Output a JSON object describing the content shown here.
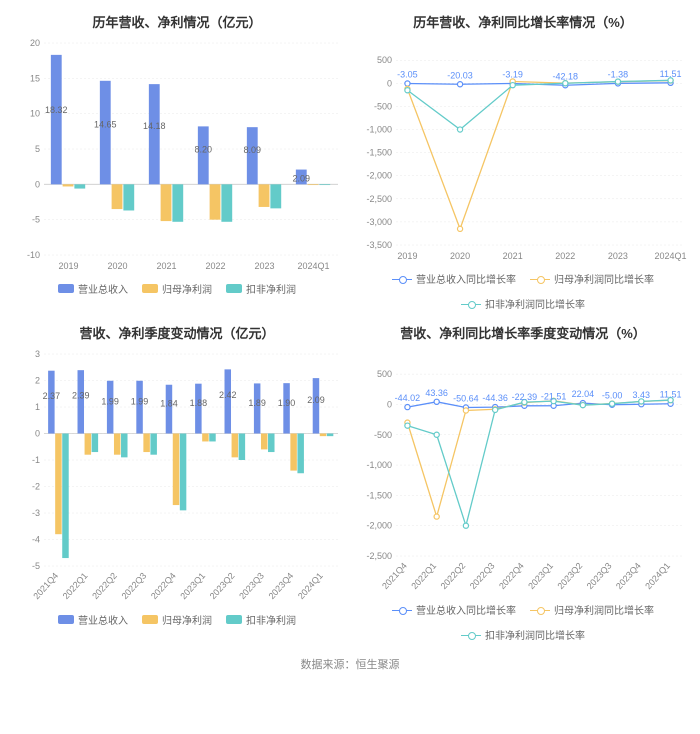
{
  "colors": {
    "bar_revenue": "#6e8fe6",
    "bar_net": "#f5c564",
    "bar_nonrec": "#63cbc9",
    "line_revenue": "#5b8ff9",
    "line_net": "#f5c564",
    "line_nonrec": "#63cbc9",
    "grid": "#e8e8e8",
    "axis": "#888888",
    "title": "#333333",
    "bg": "#ffffff"
  },
  "footer": "数据来源：恒生聚源",
  "panels": {
    "tl": {
      "title": "历年营收、净利情况（亿元）",
      "type": "grouped-bar",
      "categories": [
        "2019",
        "2020",
        "2021",
        "2022",
        "2023",
        "2024Q1"
      ],
      "ylim": [
        -10,
        20
      ],
      "ytick_step": 5,
      "series": [
        {
          "key": "revenue",
          "label": "营业总收入",
          "color": "#6e8fe6",
          "values": [
            18.32,
            14.65,
            14.18,
            8.2,
            8.09,
            2.09
          ]
        },
        {
          "key": "net",
          "label": "归母净利润",
          "color": "#f5c564",
          "values": [
            -0.3,
            -3.5,
            -5.2,
            -5.0,
            -3.2,
            -0.1
          ]
        },
        {
          "key": "nonrec",
          "label": "扣非净利润",
          "color": "#63cbc9",
          "values": [
            -0.6,
            -3.7,
            -5.3,
            -5.3,
            -3.4,
            -0.1
          ]
        }
      ],
      "bar_labels_series": "revenue"
    },
    "tr": {
      "title": "历年营收、净利同比增长率情况（%）",
      "type": "line",
      "categories": [
        "2019",
        "2020",
        "2021",
        "2022",
        "2023",
        "2024Q1"
      ],
      "ylim": [
        -3500,
        700
      ],
      "yticks": [
        -3500,
        -3000,
        -2500,
        -2000,
        -1500,
        -1000,
        -500,
        0,
        500
      ],
      "series": [
        {
          "key": "revenue",
          "label": "营业总收入同比增长率",
          "color": "#5b8ff9",
          "values": [
            -3.05,
            -20.03,
            -3.19,
            -42.18,
            -1.38,
            11.51
          ]
        },
        {
          "key": "net",
          "label": "归母净利润同比增长率",
          "color": "#f5c564",
          "values": [
            -120,
            -3150,
            40,
            5,
            36,
            60
          ]
        },
        {
          "key": "nonrec",
          "label": "扣非净利润同比增长率",
          "color": "#63cbc9",
          "values": [
            -150,
            -1000,
            -40,
            2,
            38,
            65
          ]
        }
      ],
      "point_labels_series": "revenue"
    },
    "bl": {
      "title": "营收、净利季度变动情况（亿元）",
      "type": "grouped-bar",
      "categories": [
        "2021Q4",
        "2022Q1",
        "2022Q2",
        "2022Q3",
        "2022Q4",
        "2023Q1",
        "2023Q2",
        "2023Q3",
        "2023Q4",
        "2024Q1"
      ],
      "ylim": [
        -5,
        3
      ],
      "ytick_step": 1,
      "rotate_x": true,
      "series": [
        {
          "key": "revenue",
          "label": "营业总收入",
          "color": "#6e8fe6",
          "values": [
            2.37,
            2.39,
            1.99,
            1.99,
            1.84,
            1.88,
            2.42,
            1.89,
            1.9,
            2.09
          ]
        },
        {
          "key": "net",
          "label": "归母净利润",
          "color": "#f5c564",
          "values": [
            -3.8,
            -0.8,
            -0.8,
            -0.7,
            -2.7,
            -0.3,
            -0.9,
            -0.6,
            -1.4,
            -0.1
          ]
        },
        {
          "key": "nonrec",
          "label": "扣非净利润",
          "color": "#63cbc9",
          "values": [
            -4.7,
            -0.7,
            -0.9,
            -0.8,
            -2.9,
            -0.3,
            -1.0,
            -0.7,
            -1.5,
            -0.1
          ]
        }
      ],
      "bar_labels_series": "revenue"
    },
    "br": {
      "title": "营收、净利同比增长率季度变动情况（%）",
      "type": "line",
      "categories": [
        "2021Q4",
        "2022Q1",
        "2022Q2",
        "2022Q3",
        "2022Q4",
        "2023Q1",
        "2023Q2",
        "2023Q3",
        "2023Q4",
        "2024Q1"
      ],
      "ylim": [
        -2500,
        700
      ],
      "yticks": [
        -2500,
        -2000,
        -1500,
        -1000,
        -500,
        0,
        500
      ],
      "rotate_x": true,
      "series": [
        {
          "key": "revenue",
          "label": "营业总收入同比增长率",
          "color": "#5b8ff9",
          "values": [
            -44.02,
            43.36,
            -50.64,
            -44.36,
            -22.39,
            -21.51,
            22.04,
            -5.0,
            3.43,
            11.51
          ]
        },
        {
          "key": "net",
          "label": "归母净利润同比增长率",
          "color": "#f5c564",
          "values": [
            -300,
            -1850,
            -100,
            -80,
            30,
            60,
            -10,
            15,
            48,
            70
          ]
        },
        {
          "key": "nonrec",
          "label": "扣非净利润同比增长率",
          "color": "#63cbc9",
          "values": [
            -350,
            -500,
            -2000,
            -90,
            38,
            55,
            -12,
            12,
            50,
            72
          ]
        }
      ],
      "point_labels_series": "revenue"
    }
  }
}
